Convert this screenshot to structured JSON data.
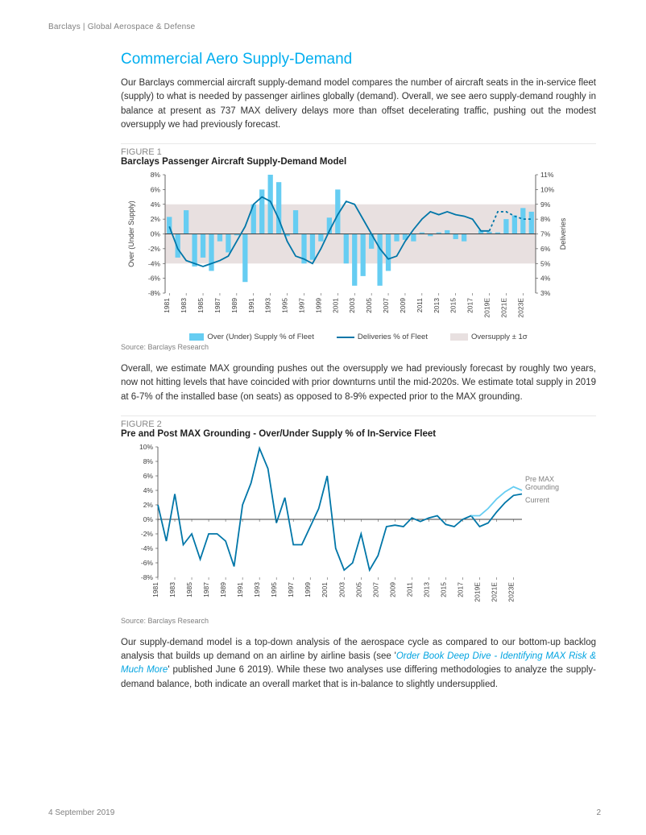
{
  "header": {
    "brand": "Barclays",
    "sep": " | ",
    "doc": "Global Aerospace & Defense"
  },
  "section_title": "Commercial Aero Supply-Demand",
  "para1": "Our Barclays commercial aircraft supply-demand model compares the number of aircraft seats in the in-service fleet (supply) to what is needed by passenger airlines globally (demand).  Overall, we see aero supply-demand roughly in balance at present as 737 MAX delivery delays more than offset decelerating traffic, pushing out the modest oversupply we had previously forecast.",
  "fig1": {
    "label": "FIGURE 1",
    "title": "Barclays Passenger Aircraft Supply-Demand Model",
    "type": "combo-bar-line",
    "years": [
      1981,
      1983,
      1985,
      1987,
      1989,
      1991,
      1993,
      1995,
      1997,
      1999,
      2001,
      2003,
      2005,
      2007,
      2009,
      2011,
      2013,
      2015,
      2017,
      "2019E",
      "2021E",
      "2023E"
    ],
    "bars_full": [
      2.3,
      -3.2,
      3.2,
      -4.4,
      -3.2,
      -5.0,
      -1.0,
      -2.5,
      -0.2,
      -6.5,
      4.0,
      6.0,
      8.0,
      7.0,
      -0.3,
      3.2,
      -4.0,
      -3.5,
      -1.0,
      2.2,
      6.0,
      -4.0,
      -7.0,
      -5.7,
      -2.0,
      -7.0,
      -5.0,
      -1.0,
      -0.8,
      -1.0,
      0.2,
      -0.3,
      0.2,
      0.5,
      -0.7,
      -1.0,
      0.0,
      0.5,
      0.3,
      0.2,
      2.0,
      2.5,
      3.5,
      3.0
    ],
    "line_deliveries_full": [
      7.5,
      6.0,
      5.2,
      5.0,
      4.8,
      5.0,
      5.2,
      5.5,
      6.5,
      7.5,
      9.0,
      9.5,
      9.2,
      8.0,
      6.5,
      5.5,
      5.3,
      5.0,
      6.0,
      7.2,
      8.3,
      9.2,
      9.0,
      8.0,
      7.0,
      6.0,
      5.3,
      5.5,
      6.5,
      7.3,
      8.0,
      8.5,
      8.3,
      8.5,
      8.3,
      8.2,
      8.0,
      7.2,
      7.2,
      8.5,
      8.5,
      8.2,
      8.0,
      8.0
    ],
    "dashed_from_index": 38,
    "y_left": {
      "label": "Over (Under Supply)",
      "min": -8,
      "max": 8,
      "step": 2,
      "fmt": "%"
    },
    "y_right": {
      "label": "Deliveries",
      "min": 3,
      "max": 11,
      "step": 1,
      "fmt": "%"
    },
    "band": {
      "low": -4,
      "high": 4,
      "color": "#e8e0e0"
    },
    "colors": {
      "bar": "#66cdf2",
      "line": "#0076a8",
      "axis": "#404040"
    },
    "legend": [
      "Over (Under) Supply % of Fleet",
      "Deliveries % of Fleet",
      "Oversupply ± 1σ"
    ],
    "source": "Source: Barclays Research"
  },
  "para2": "Overall, we estimate MAX grounding pushes out the oversupply we had previously forecast by roughly two years, now not hitting levels that have coincided with prior downturns until the mid-2020s.  We estimate total supply in 2019 at 6-7% of the installed base (on seats) as opposed to 8-9% expected prior to the MAX grounding.",
  "fig2": {
    "label": "FIGURE 2",
    "title": "Pre and Post MAX Grounding - Over/Under Supply % of In-Service Fleet",
    "type": "line",
    "years": [
      1981,
      1983,
      1985,
      1987,
      1989,
      1991,
      1993,
      1995,
      1997,
      1999,
      2001,
      2003,
      2005,
      2007,
      2009,
      2011,
      2013,
      2015,
      2017,
      "2019E",
      "2021E",
      "2023E"
    ],
    "series_current": [
      2.0,
      -3.0,
      3.5,
      -3.5,
      -2.0,
      -5.5,
      -2.0,
      -2.0,
      -3.0,
      -6.5,
      2.0,
      5.0,
      9.8,
      7.0,
      -0.5,
      3.0,
      -3.5,
      -3.5,
      -1.0,
      1.5,
      6.0,
      -4.0,
      -7.0,
      -6.0,
      -2.0,
      -7.0,
      -5.0,
      -1.0,
      -0.8,
      -1.0,
      0.2,
      -0.3,
      0.2,
      0.5,
      -0.7,
      -1.0,
      0.0,
      0.5,
      -1.0,
      -0.5,
      1.0,
      2.3,
      3.3,
      3.5
    ],
    "series_pre_from_index": 37,
    "series_pre_tail": [
      0.5,
      0.5,
      1.5,
      2.8,
      3.8,
      4.5,
      4.0
    ],
    "y": {
      "min": -8,
      "max": 10,
      "step": 2,
      "fmt": "%"
    },
    "colors": {
      "current": "#0076a8",
      "pre": "#66cdf2",
      "axis": "#404040",
      "grid": "#cccccc"
    },
    "annot": {
      "pre": "Pre MAX\nGrounding",
      "cur": "Current"
    },
    "source": "Source: Barclays Research"
  },
  "para3a": "Our supply-demand model is a top-down analysis of the aerospace cycle as compared to our bottom-up backlog analysis that builds up demand on an airline by airline basis (see '",
  "para3link": "Order Book Deep Dive - Identifying MAX Risk & Much More",
  "para3b": "' published June 6 2019). While these two analyses use differing methodologies to analyze the supply-demand balance, both indicate an overall market that is in-balance to slightly undersupplied.",
  "footer": {
    "date": "4 September 2019",
    "page": "2"
  }
}
